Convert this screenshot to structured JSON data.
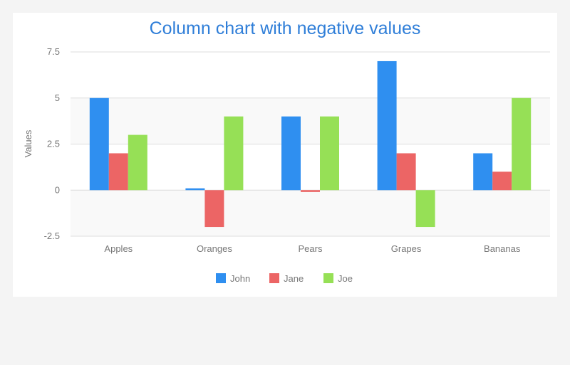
{
  "chart_data": {
    "type": "bar",
    "title": "Column chart with negative values",
    "xlabel": "",
    "ylabel": "Values",
    "categories": [
      "Apples",
      "Oranges",
      "Pears",
      "Grapes",
      "Bananas"
    ],
    "series": [
      {
        "name": "John",
        "color": "#2f8ff0",
        "values": [
          5,
          0.1,
          4,
          7,
          2
        ]
      },
      {
        "name": "Jane",
        "color": "#ec6565",
        "values": [
          2,
          -2,
          -0.1,
          2,
          1
        ]
      },
      {
        "name": "Joe",
        "color": "#96e056",
        "values": [
          3,
          4,
          4,
          -2,
          5
        ]
      }
    ],
    "ylim": [
      -2.5,
      7.5
    ],
    "yticks": [
      -2.5,
      0,
      2.5,
      5,
      7.5
    ],
    "ytick_labels": [
      "-2.5",
      "0",
      "2.5",
      "5",
      "7.5"
    ],
    "grid": true,
    "legend_position": "bottom-center"
  }
}
